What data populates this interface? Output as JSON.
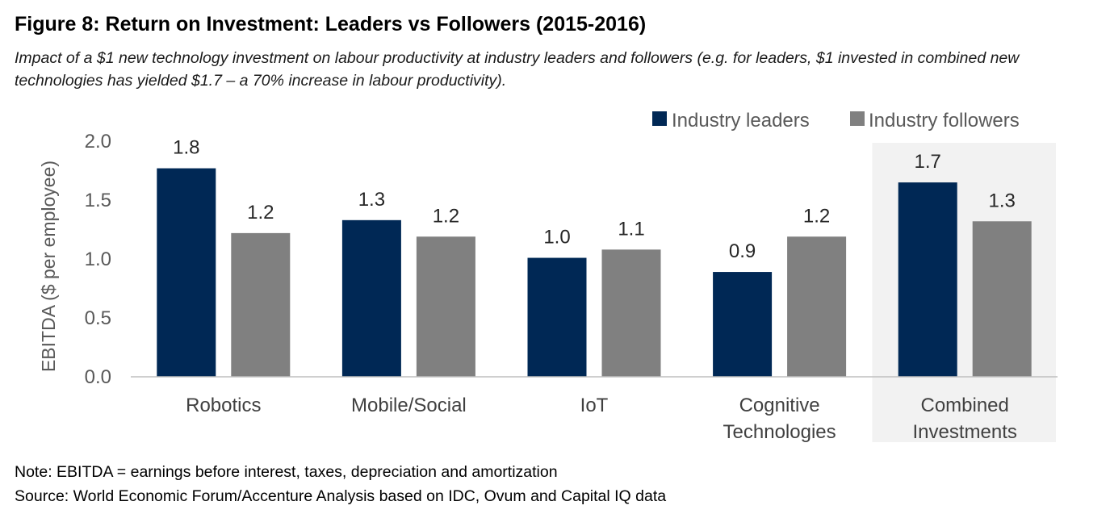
{
  "title": "Figure 8: Return on Investment: Leaders vs Followers (2015-2016)",
  "subtitle": "Impact of a $1 new technology investment on labour productivity at industry leaders and followers (e.g. for leaders, $1 invested in combined new technologies has yielded $1.7 – a 70% increase in labour productivity).",
  "notes": {
    "note": "Note: EBITDA = earnings before interest, taxes, depreciation and amortization",
    "source": "Source: World Economic Forum/Accenture Analysis based on IDC, Ovum and Capital IQ data"
  },
  "chart_data": {
    "type": "bar",
    "title": "Return on Investment: Leaders vs Followers (2015-2016)",
    "xlabel": "",
    "ylabel": "EBITDA ($ per employee)",
    "ylim": [
      0,
      2.0
    ],
    "yticks": [
      "0.0",
      "0.5",
      "1.0",
      "1.5",
      "2.0"
    ],
    "grid": false,
    "legend_position": "top-right",
    "highlighted_category": "Combined Investments",
    "categories": [
      "Robotics",
      "Mobile/Social",
      "IoT",
      "Cognitive Technologies",
      "Combined Investments"
    ],
    "category_lines": [
      [
        "Robotics"
      ],
      [
        "Mobile/Social"
      ],
      [
        "IoT"
      ],
      [
        "Cognitive",
        "Technologies"
      ],
      [
        "Combined",
        "Investments"
      ]
    ],
    "series": [
      {
        "name": "Industry leaders",
        "color": "#002855",
        "values": [
          1.77,
          1.33,
          1.01,
          0.89,
          1.65
        ],
        "labels": [
          "1.8",
          "1.3",
          "1.0",
          "0.9",
          "1.7"
        ]
      },
      {
        "name": "Industry followers",
        "color": "#808080",
        "values": [
          1.22,
          1.19,
          1.08,
          1.19,
          1.32
        ],
        "labels": [
          "1.2",
          "1.2",
          "1.1",
          "1.2",
          "1.3"
        ]
      }
    ]
  }
}
